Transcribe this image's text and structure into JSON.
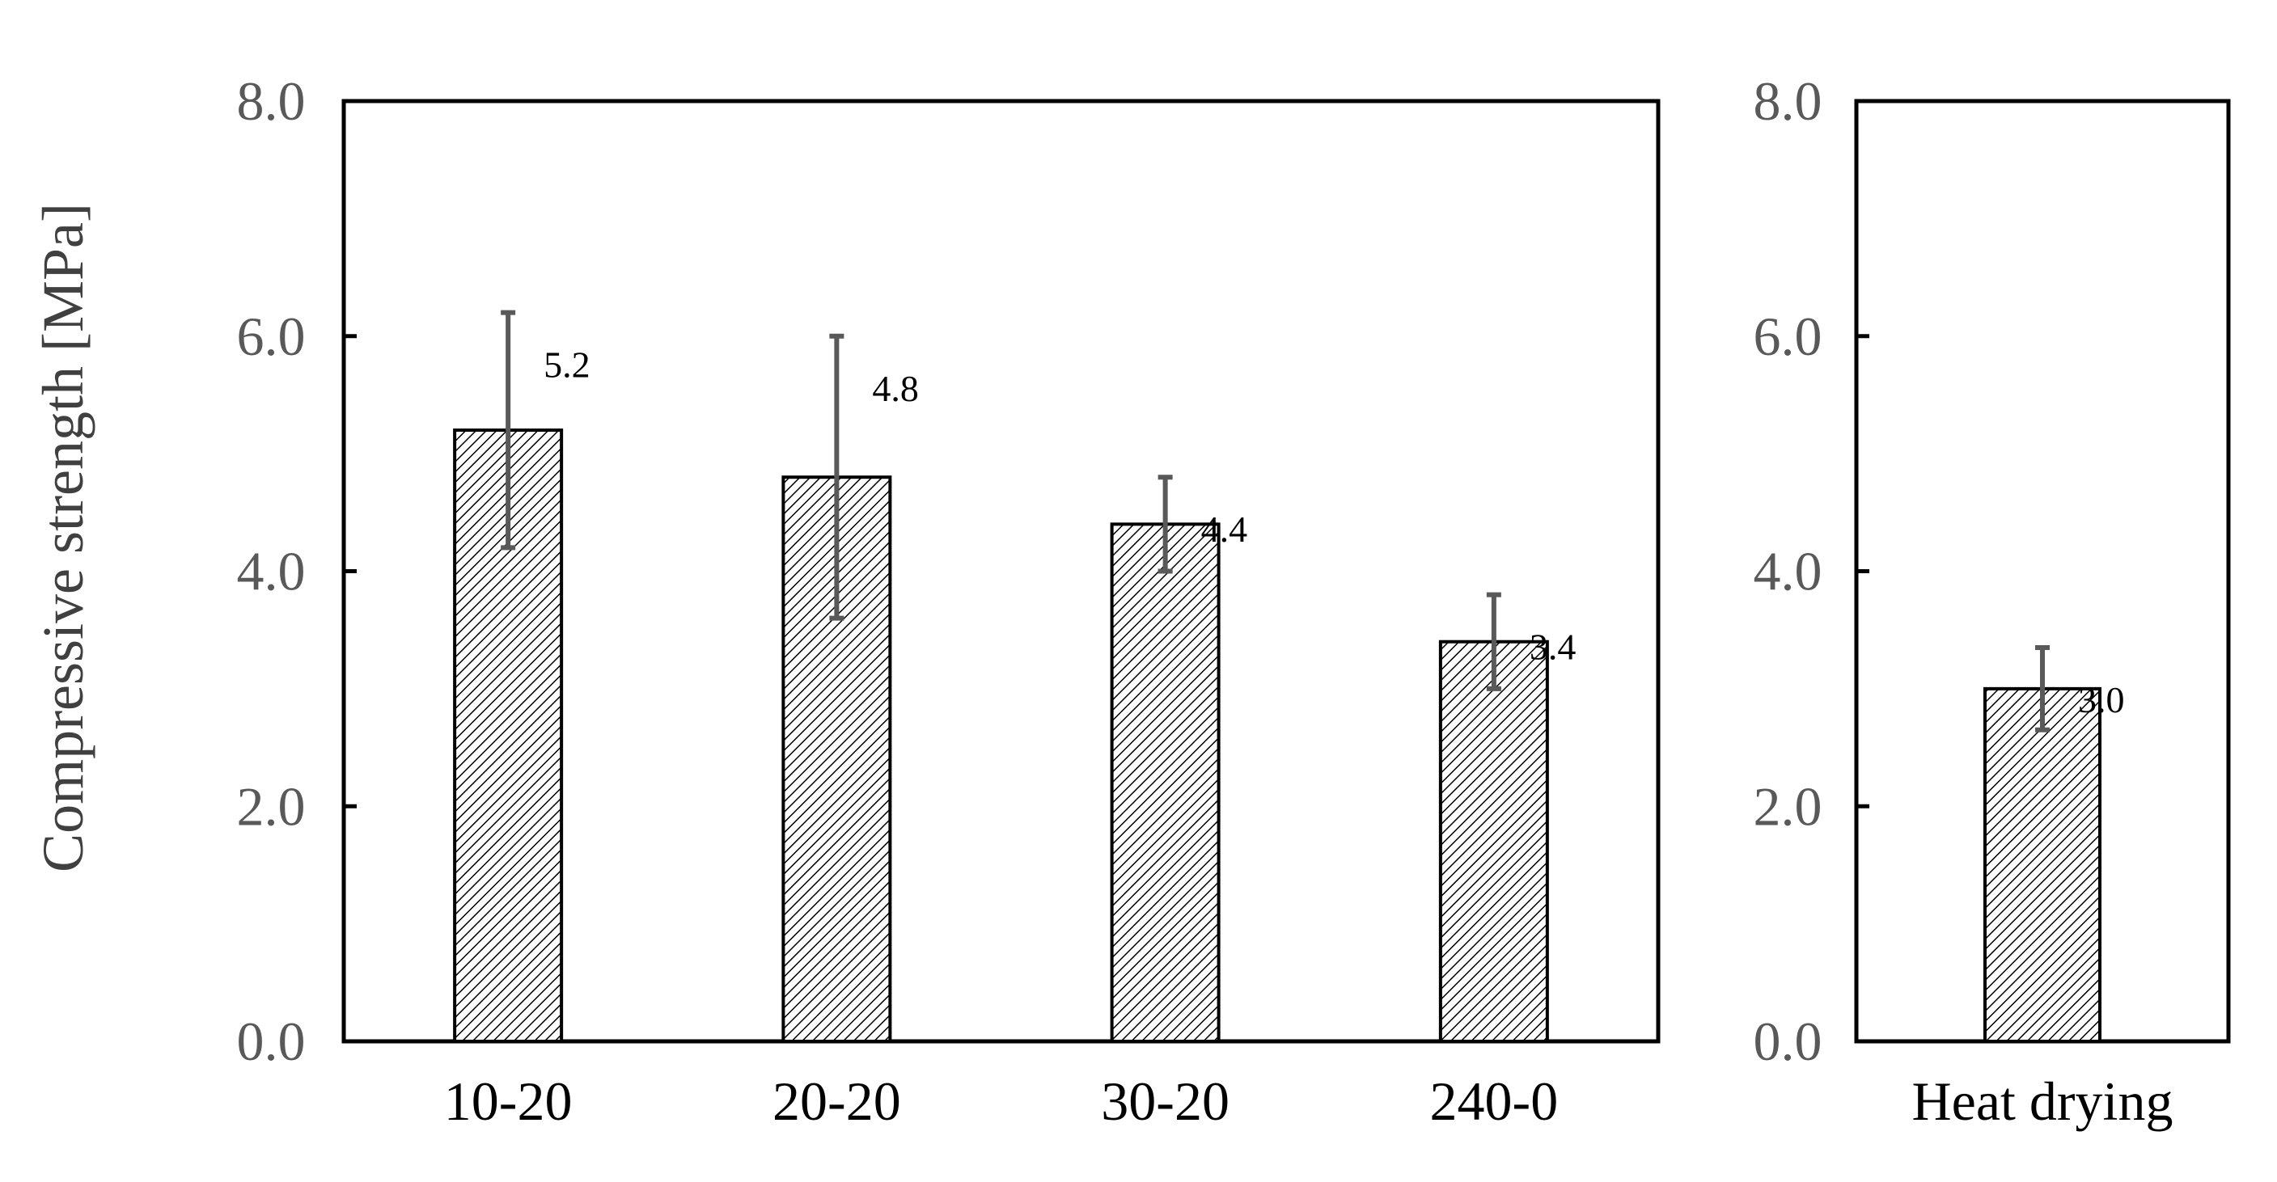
{
  "chart_data": [
    {
      "type": "bar",
      "ylabel": "Compressive strength [MPa]",
      "ylim": [
        0,
        8
      ],
      "yticks": [
        "0.0",
        "2.0",
        "4.0",
        "6.0",
        "8.0"
      ],
      "categories": [
        "10-20",
        "20-20",
        "30-20",
        "240-0"
      ],
      "values": [
        5.2,
        4.8,
        4.4,
        3.4
      ],
      "error_low": [
        4.2,
        3.6,
        4.0,
        3.0
      ],
      "error_high": [
        6.2,
        6.0,
        4.8,
        3.8
      ],
      "data_labels": [
        "5.2",
        "4.8",
        "4.4",
        "3.4"
      ],
      "fill": "diagonal-hatch",
      "grid": false
    },
    {
      "type": "bar",
      "ylim": [
        0,
        8
      ],
      "yticks": [
        "0.0",
        "2.0",
        "4.0",
        "6.0",
        "8.0"
      ],
      "categories": [
        "Heat drying"
      ],
      "values": [
        3.0
      ],
      "error_low": [
        2.65
      ],
      "error_high": [
        3.35
      ],
      "data_labels": [
        "3.0"
      ],
      "fill": "diagonal-hatch",
      "grid": false
    }
  ],
  "colors": {
    "bar_stroke": "#000000",
    "hatch": "#000000",
    "error_bar": "#595959",
    "tick_text": "#595959",
    "axis_title": "#404040"
  }
}
